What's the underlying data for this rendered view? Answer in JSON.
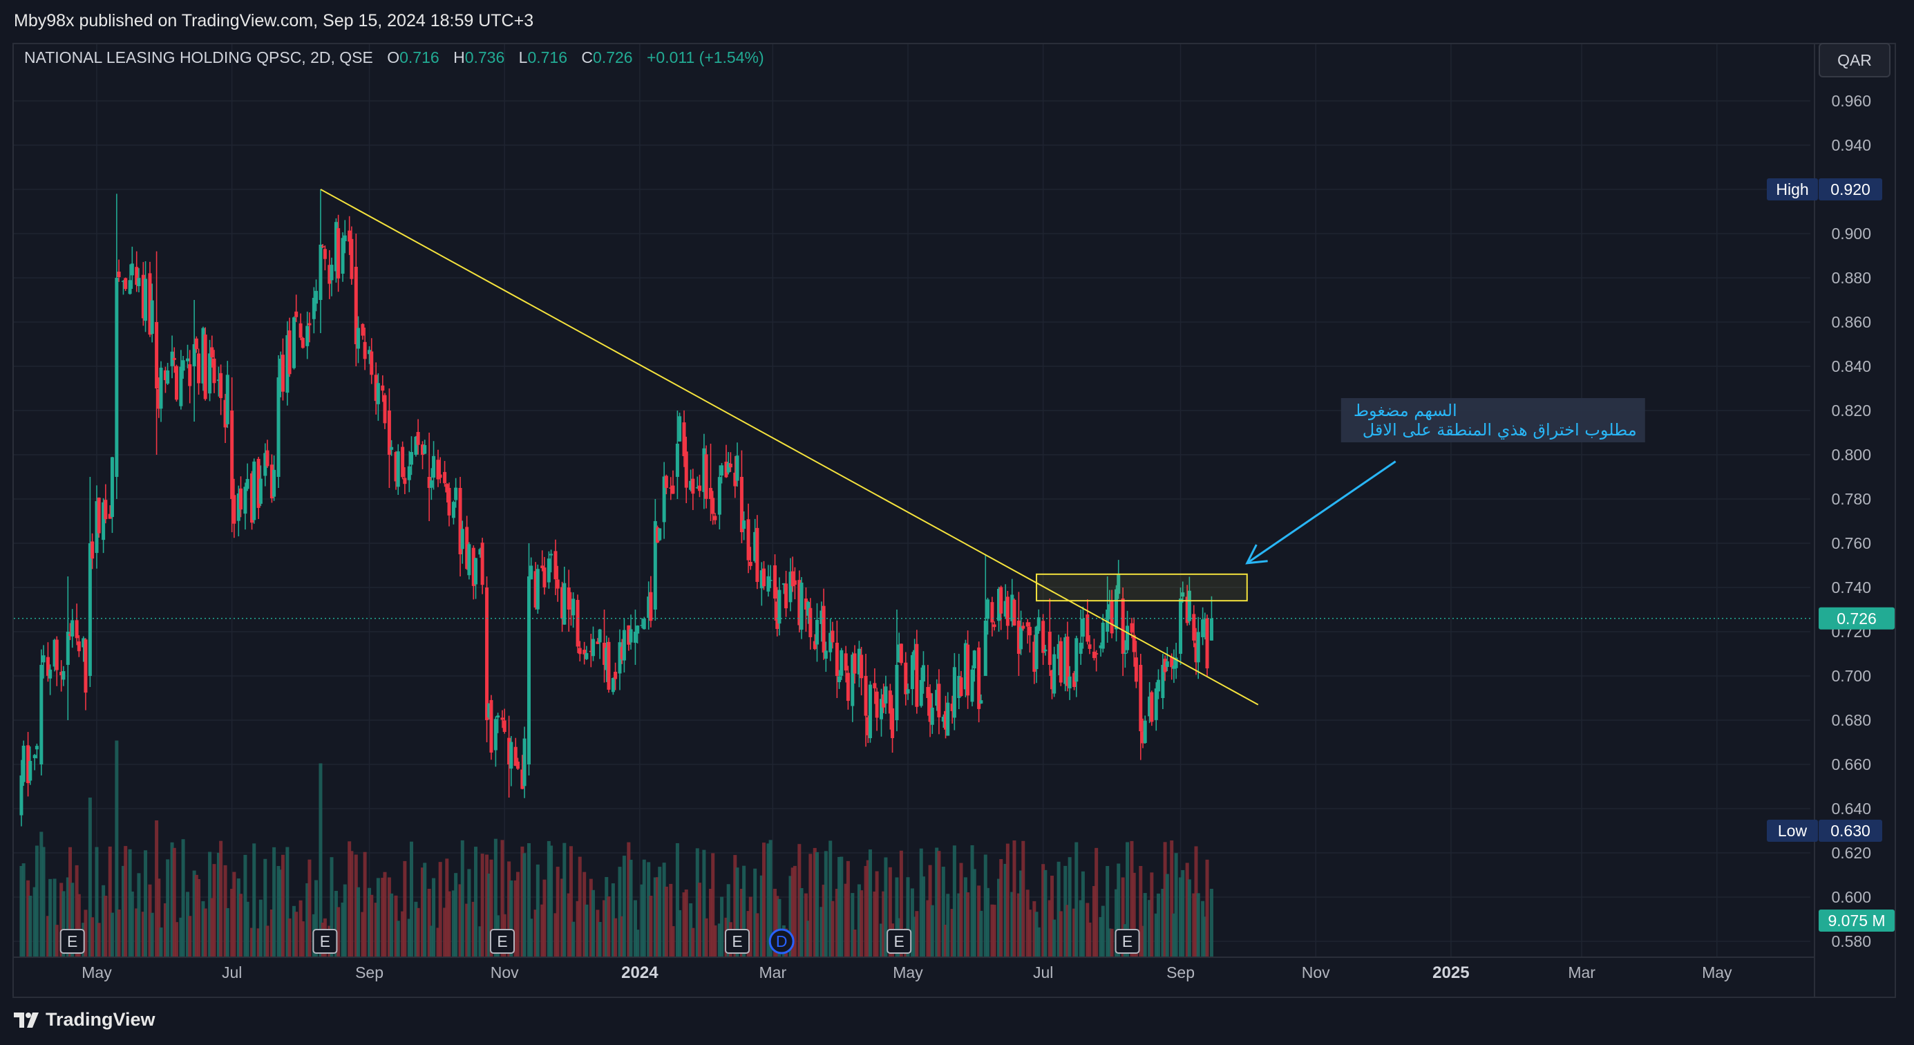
{
  "header": {
    "published_by": "Mby98x published on TradingView.com, Sep 15, 2024 18:59 UTC+3"
  },
  "legend": {
    "symbol": "NATIONAL LEASING HOLDING QPSC, 2D, QSE",
    "o_label": "O",
    "o_value": "0.716",
    "h_label": "H",
    "h_value": "0.736",
    "l_label": "L",
    "l_value": "0.716",
    "c_label": "C",
    "c_value": "0.726",
    "change": "+0.011 (+1.54%)"
  },
  "currency_button": "QAR",
  "footer": {
    "brand": "TradingView"
  },
  "colors": {
    "background": "#131722",
    "up": "#22ab94",
    "down": "#f23645",
    "trendline": "#f5e33d",
    "annotation": "#29b6f6",
    "price_tag": "#22ab94",
    "high_low_tag": "#1c3160"
  },
  "chart_data": {
    "type": "candlestick",
    "timeframe": "2D",
    "x_axis": {
      "tick_labels": [
        "May",
        "Jul",
        "Sep",
        "Nov",
        "2024",
        "Mar",
        "May",
        "Jul",
        "Sep",
        "Nov",
        "2025",
        "Mar",
        "May"
      ],
      "bold_labels": [
        "2024",
        "2025"
      ]
    },
    "y_axis": {
      "range": [
        0.572,
        0.98
      ],
      "tick_labels": [
        "0.960",
        "0.940",
        "0.920",
        "0.900",
        "0.880",
        "0.860",
        "0.840",
        "0.820",
        "0.800",
        "0.780",
        "0.760",
        "0.740",
        "0.720",
        "0.700",
        "0.680",
        "0.660",
        "0.640",
        "0.620",
        "0.600",
        "0.580"
      ]
    },
    "grid": true,
    "high": {
      "label": "High",
      "value": "0.920"
    },
    "low": {
      "label": "Low",
      "value": "0.630"
    },
    "last_price": "0.726",
    "last_volume": "9.075 M",
    "earnings_markers": [
      {
        "date": "2023-04-20",
        "label": "E"
      },
      {
        "date": "2023-08-12",
        "label": "E"
      },
      {
        "date": "2023-10-31",
        "label": "E"
      },
      {
        "date": "2024-02-14",
        "label": "E"
      },
      {
        "date": "2024-04-27",
        "label": "E"
      },
      {
        "date": "2024-08-08",
        "label": "E"
      }
    ],
    "dividend_markers": [
      {
        "date": "2024-03-05",
        "label": "D"
      }
    ],
    "trendline": {
      "from": {
        "date": "2023-08-10",
        "price": 0.92
      },
      "to": {
        "date": "2024-10-06",
        "price": 0.687
      }
    },
    "resistance_zone": {
      "from_date": "2024-06-28",
      "to_date": "2024-10-01",
      "low": 0.734,
      "high": 0.746
    },
    "arrow": {
      "from": {
        "date": "2024-12-07",
        "price": 0.797
      },
      "to": {
        "date": "2024-10-01",
        "price": 0.751
      }
    },
    "annotation": {
      "line1": "السهم مضغوط",
      "line2": "مطلوب اختراق هذي المنطقة على الاقل",
      "anchor": {
        "date": "2024-11-18",
        "price": 0.82
      }
    },
    "anchors": [
      {
        "date": "2023-03-28",
        "o": 0.637,
        "h": 0.662,
        "l": 0.632,
        "c": 0.655,
        "v": 40
      },
      {
        "date": "2023-04-06",
        "o": 0.66,
        "h": 0.712,
        "l": 0.655,
        "c": 0.705,
        "v": 55
      },
      {
        "date": "2023-04-18",
        "o": 0.705,
        "h": 0.745,
        "l": 0.68,
        "c": 0.72,
        "v": 35
      },
      {
        "date": "2023-04-28",
        "o": 0.7,
        "h": 0.79,
        "l": 0.695,
        "c": 0.76,
        "v": 70
      },
      {
        "date": "2023-05-10",
        "o": 0.79,
        "h": 0.918,
        "l": 0.78,
        "c": 0.88,
        "v": 95
      },
      {
        "date": "2023-05-28",
        "o": 0.86,
        "h": 0.892,
        "l": 0.8,
        "c": 0.83,
        "v": 60
      },
      {
        "date": "2023-06-14",
        "o": 0.84,
        "h": 0.87,
        "l": 0.815,
        "c": 0.85,
        "v": 38
      },
      {
        "date": "2023-07-01",
        "o": 0.82,
        "h": 0.835,
        "l": 0.765,
        "c": 0.78,
        "v": 30
      },
      {
        "date": "2023-07-22",
        "o": 0.79,
        "h": 0.845,
        "l": 0.785,
        "c": 0.835,
        "v": 40
      },
      {
        "date": "2023-08-10",
        "o": 0.87,
        "h": 0.92,
        "l": 0.855,
        "c": 0.895,
        "v": 85
      },
      {
        "date": "2023-08-26",
        "o": 0.885,
        "h": 0.9,
        "l": 0.84,
        "c": 0.85,
        "v": 45
      },
      {
        "date": "2023-09-10",
        "o": 0.82,
        "h": 0.83,
        "l": 0.785,
        "c": 0.8,
        "v": 35
      },
      {
        "date": "2023-09-28",
        "o": 0.79,
        "h": 0.81,
        "l": 0.77,
        "c": 0.785,
        "v": 30
      },
      {
        "date": "2023-10-12",
        "o": 0.785,
        "h": 0.79,
        "l": 0.745,
        "c": 0.755,
        "v": 32
      },
      {
        "date": "2023-10-24",
        "o": 0.74,
        "h": 0.745,
        "l": 0.67,
        "c": 0.68,
        "v": 45
      },
      {
        "date": "2023-11-03",
        "o": 0.672,
        "h": 0.682,
        "l": 0.645,
        "c": 0.66,
        "v": 42
      },
      {
        "date": "2023-11-12",
        "o": 0.66,
        "h": 0.76,
        "l": 0.655,
        "c": 0.745,
        "v": 50
      },
      {
        "date": "2023-11-30",
        "o": 0.74,
        "h": 0.748,
        "l": 0.72,
        "c": 0.73,
        "v": 28
      },
      {
        "date": "2023-12-16",
        "o": 0.715,
        "h": 0.73,
        "l": 0.697,
        "c": 0.705,
        "v": 25
      },
      {
        "date": "2023-12-30",
        "o": 0.715,
        "h": 0.73,
        "l": 0.705,
        "c": 0.72,
        "v": 25
      },
      {
        "date": "2024-01-08",
        "o": 0.73,
        "h": 0.78,
        "l": 0.725,
        "c": 0.77,
        "v": 35
      },
      {
        "date": "2024-01-18",
        "o": 0.79,
        "h": 0.82,
        "l": 0.78,
        "c": 0.805,
        "v": 50
      },
      {
        "date": "2024-02-02",
        "o": 0.785,
        "h": 0.805,
        "l": 0.77,
        "c": 0.78,
        "v": 30
      },
      {
        "date": "2024-02-16",
        "o": 0.79,
        "h": 0.802,
        "l": 0.76,
        "c": 0.765,
        "v": 30
      },
      {
        "date": "2024-03-02",
        "o": 0.75,
        "h": 0.755,
        "l": 0.725,
        "c": 0.735,
        "v": 30
      },
      {
        "date": "2024-03-16",
        "o": 0.735,
        "h": 0.74,
        "l": 0.72,
        "c": 0.73,
        "v": 28
      },
      {
        "date": "2024-03-30",
        "o": 0.715,
        "h": 0.725,
        "l": 0.69,
        "c": 0.7,
        "v": 30
      },
      {
        "date": "2024-04-12",
        "o": 0.7,
        "h": 0.71,
        "l": 0.668,
        "c": 0.682,
        "v": 40
      },
      {
        "date": "2024-04-26",
        "o": 0.68,
        "h": 0.73,
        "l": 0.675,
        "c": 0.705,
        "v": 35
      },
      {
        "date": "2024-05-10",
        "o": 0.695,
        "h": 0.705,
        "l": 0.682,
        "c": 0.69,
        "v": 25
      },
      {
        "date": "2024-05-24",
        "o": 0.69,
        "h": 0.71,
        "l": 0.685,
        "c": 0.7,
        "v": 28
      },
      {
        "date": "2024-06-05",
        "o": 0.7,
        "h": 0.755,
        "l": 0.7,
        "c": 0.725,
        "v": 45
      },
      {
        "date": "2024-06-20",
        "o": 0.725,
        "h": 0.738,
        "l": 0.7,
        "c": 0.71,
        "v": 28
      },
      {
        "date": "2024-07-04",
        "o": 0.72,
        "h": 0.735,
        "l": 0.7,
        "c": 0.705,
        "v": 25
      },
      {
        "date": "2024-07-18",
        "o": 0.71,
        "h": 0.73,
        "l": 0.705,
        "c": 0.715,
        "v": 25
      },
      {
        "date": "2024-07-30",
        "o": 0.72,
        "h": 0.745,
        "l": 0.715,
        "c": 0.73,
        "v": 40
      },
      {
        "date": "2024-08-06",
        "o": 0.735,
        "h": 0.74,
        "l": 0.7,
        "c": 0.71,
        "v": 35
      },
      {
        "date": "2024-08-14",
        "o": 0.705,
        "h": 0.71,
        "l": 0.662,
        "c": 0.675,
        "v": 40
      },
      {
        "date": "2024-08-24",
        "o": 0.69,
        "h": 0.71,
        "l": 0.685,
        "c": 0.705,
        "v": 30
      },
      {
        "date": "2024-09-01",
        "o": 0.71,
        "h": 0.74,
        "l": 0.705,
        "c": 0.735,
        "v": 35
      },
      {
        "date": "2024-09-07",
        "o": 0.728,
        "h": 0.732,
        "l": 0.713,
        "c": 0.716,
        "v": 28
      },
      {
        "date": "2024-09-15",
        "o": 0.716,
        "h": 0.736,
        "l": 0.716,
        "c": 0.726,
        "v": 30
      }
    ]
  }
}
